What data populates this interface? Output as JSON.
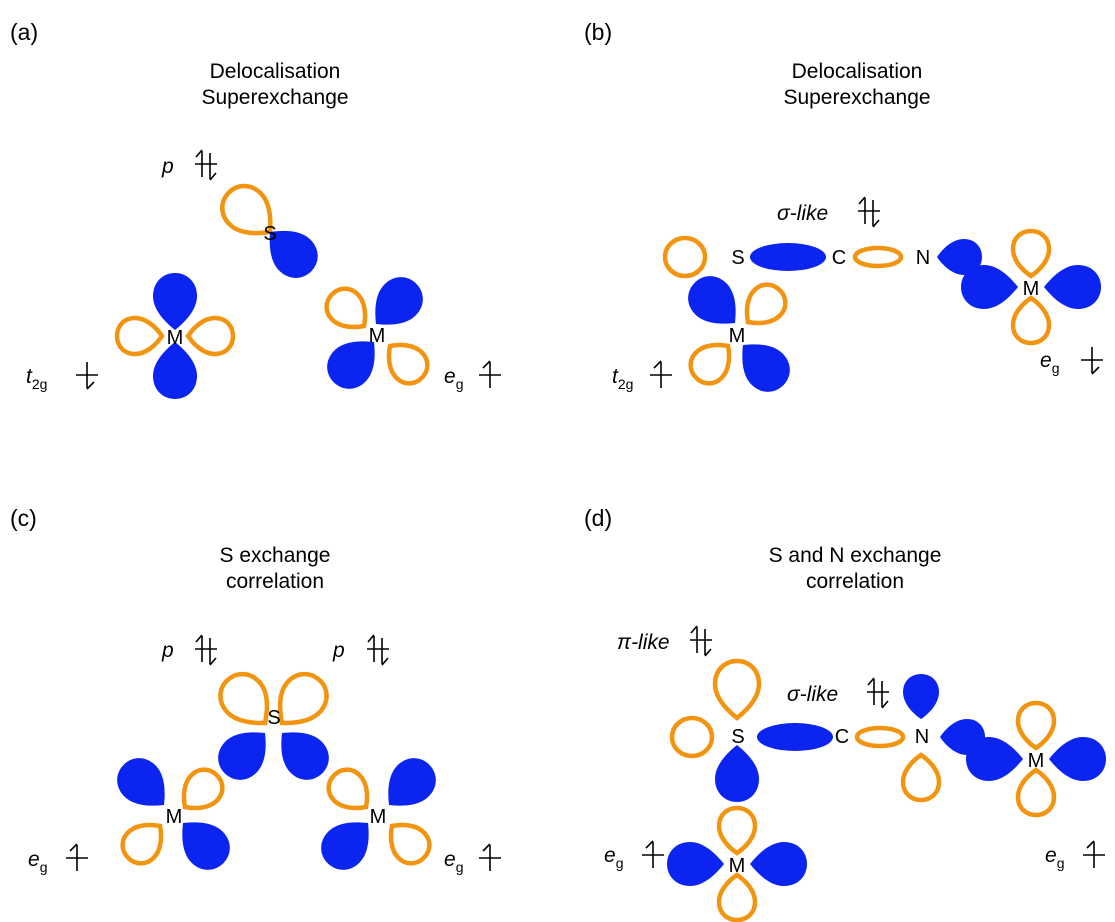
{
  "colors": {
    "empty_lobe_outline": "#f29410",
    "filled_lobe": "#0b24f0",
    "text": "#000000",
    "background": "#ffffff"
  },
  "panels": {
    "a": {
      "tag": "(a)",
      "title_line1": "Delocalisation",
      "title_line2": "Superexchange",
      "orbital_p": "p",
      "atom_s": "S",
      "atom_m_left": "M",
      "atom_m_right": "M",
      "left_term": "t",
      "left_term_sub": "2g",
      "right_term": "e",
      "right_term_sub": "g"
    },
    "b": {
      "tag": "(b)",
      "title_line1": "Delocalisation",
      "title_line2": "Superexchange",
      "sigma_label": "σ-like",
      "atom_s": "S",
      "atom_c": "C",
      "atom_n": "N",
      "atom_m_left": "M",
      "atom_m_right": "M",
      "left_term": "t",
      "left_term_sub": "2g",
      "right_term": "e",
      "right_term_sub": "g"
    },
    "c": {
      "tag": "(c)",
      "title_line1": "S exchange",
      "title_line2": "correlation",
      "orbital_p_left": "p",
      "orbital_p_right": "p",
      "atom_s": "S",
      "atom_m_left": "M",
      "atom_m_right": "M",
      "left_term": "e",
      "left_term_sub": "g",
      "right_term": "e",
      "right_term_sub": "g"
    },
    "d": {
      "tag": "(d)",
      "title_line1": "S and N exchange",
      "title_line2": "correlation",
      "pi_label": "π-like",
      "sigma_label": "σ-like",
      "atom_s": "S",
      "atom_c": "C",
      "atom_n": "N",
      "atom_m_bottom": "M",
      "atom_m_right": "M",
      "left_term": "e",
      "left_term_sub": "g",
      "right_term": "e",
      "right_term_sub": "g"
    }
  }
}
